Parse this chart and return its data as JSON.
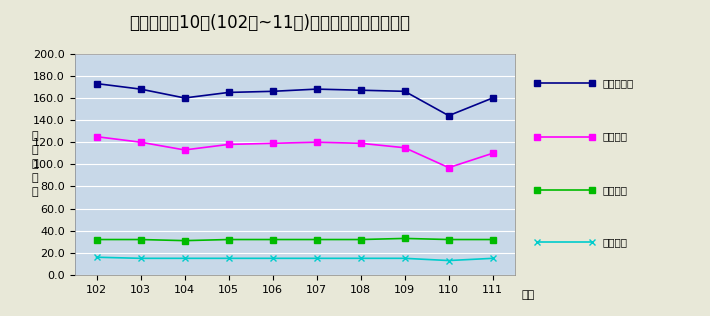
{
  "title": "臺灣地區近10年(102年~11年)各標的用水量趨勢概況",
  "years": [
    102,
    103,
    104,
    105,
    106,
    107,
    108,
    109,
    110,
    111
  ],
  "annual_total": [
    173,
    168,
    160,
    165,
    166,
    168,
    167,
    166,
    144,
    160
  ],
  "agricultural": [
    125,
    120,
    113,
    118,
    119,
    120,
    119,
    115,
    97,
    110
  ],
  "domestic": [
    32,
    32,
    31,
    32,
    32,
    32,
    32,
    33,
    32,
    32
  ],
  "industrial": [
    16,
    15,
    15,
    15,
    15,
    15,
    15,
    15,
    13,
    15
  ],
  "ylabel": "億\n立\n方\n公\n尺",
  "xlabel": "年別",
  "ylim": [
    0,
    200
  ],
  "yticks": [
    0.0,
    20.0,
    40.0,
    60.0,
    80.0,
    100.0,
    120.0,
    140.0,
    160.0,
    180.0,
    200.0
  ],
  "line_annual_color": "#00008B",
  "line_agri_color": "#FF00FF",
  "line_domestic_color": "#00BB00",
  "line_industrial_color": "#00CCCC",
  "plot_bg_color": "#C8D8E8",
  "fig_bg_color": "#E8E8D8",
  "legend_bg_color": "#E8C0C0",
  "legend_labels": [
    "年總用水量",
    "農業用水",
    "生活用水",
    "工業用水"
  ],
  "title_fontsize": 12,
  "label_fontsize": 8,
  "tick_fontsize": 8
}
